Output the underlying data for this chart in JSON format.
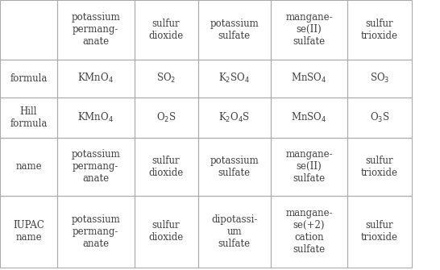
{
  "col_headers": [
    "",
    "potassium\npermang-\nanate",
    "sulfur\ndioxide",
    "potassium\nsulfate",
    "mangane-\nse(II)\nsulfate",
    "sulfur\ntrioxide"
  ],
  "rows": [
    {
      "label": "formula",
      "cells": [
        {
          "text": "KMnO",
          "sub": "4",
          "plain": false
        },
        {
          "text": "SO",
          "sub": "2",
          "plain": false
        },
        {
          "text": "K",
          "sub": "2",
          "text2": "SO",
          "sub2": "4",
          "plain": false,
          "type": "complex1"
        },
        {
          "text": "MnSO",
          "sub": "4",
          "plain": false
        },
        {
          "text": "SO",
          "sub": "3",
          "plain": false
        }
      ]
    },
    {
      "label": "Hill\nformula",
      "cells": [
        {
          "text": "KMnO",
          "sub": "4",
          "plain": false
        },
        {
          "text": "O",
          "sub": "2",
          "text2": "S",
          "plain": false,
          "type": "complex2"
        },
        {
          "text": "K",
          "sub": "2",
          "text2": "O",
          "sub2": "4",
          "text3": "S",
          "plain": false,
          "type": "complex3"
        },
        {
          "text": "MnSO",
          "sub": "4",
          "plain": false
        },
        {
          "text": "O",
          "sub": "3",
          "text2": "S",
          "plain": false,
          "type": "complex2"
        }
      ]
    },
    {
      "label": "name",
      "cells": [
        {
          "text": "potassium\npermang-\nanate",
          "plain": true
        },
        {
          "text": "sulfur\ndioxide",
          "plain": true
        },
        {
          "text": "potassium\nsulfate",
          "plain": true
        },
        {
          "text": "mangane-\nse(II)\nsulfate",
          "plain": true
        },
        {
          "text": "sulfur\ntrioxide",
          "plain": true
        }
      ]
    },
    {
      "label": "IUPAC\nname",
      "cells": [
        {
          "text": "potassium\npermang-\nanate",
          "plain": true
        },
        {
          "text": "sulfur\ndioxide",
          "plain": true
        },
        {
          "text": "dipotassi-\num\nsulfate",
          "plain": true
        },
        {
          "text": "mangane-\nse(+2)\ncation\nsulfate",
          "plain": true
        },
        {
          "text": "sulfur\ntrioxide",
          "plain": true
        }
      ]
    }
  ],
  "bg_color": "#ffffff",
  "text_color": "#404040",
  "line_color": "#aaaaaa",
  "font_size": 8.5,
  "header_font_size": 8.5
}
